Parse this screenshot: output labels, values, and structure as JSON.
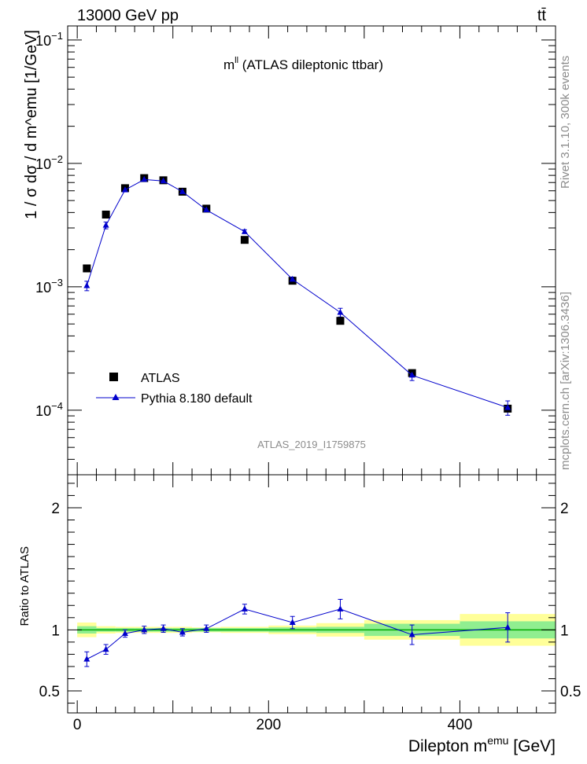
{
  "header": {
    "left": "13000 GeV pp",
    "right": "tt̄"
  },
  "annotations": {
    "plot_title_main": "m",
    "plot_title_sup": "ll",
    "plot_title_rest": " (ATLAS dileptonic ttbar)",
    "analysis_id": "ATLAS_2019_I1759875",
    "side_rivet": "Rivet 3.1.10,  300k events",
    "side_mcplots": "mcplots.cern.ch [arXiv:1306.3436]"
  },
  "colors": {
    "mc_line": "#0000cc",
    "data_marker": "#000000",
    "band_stat": "#90ee90",
    "band_total": "#ffff99",
    "ratio_ref": "#00aa00"
  },
  "chart_data": [
    {
      "type": "scatter",
      "panel": "main",
      "ylabel": "1 / σ  dσ / d m^emu [1/GeV]",
      "yscale": "log",
      "ylim": [
        3e-05,
        0.13
      ],
      "xlim": [
        -10,
        500
      ],
      "y_ticks": [
        {
          "value": 0.0001,
          "base": "10",
          "exp": "−4"
        },
        {
          "value": 0.001,
          "base": "10",
          "exp": "−3"
        },
        {
          "value": 0.01,
          "base": "10",
          "exp": "−2"
        },
        {
          "value": 0.1,
          "base": "10",
          "exp": "−1"
        }
      ],
      "series": [
        {
          "name": "ATLAS",
          "marker": "square",
          "bins": [
            [
              0,
              20
            ],
            [
              20,
              40
            ],
            [
              40,
              60
            ],
            [
              60,
              80
            ],
            [
              80,
              100
            ],
            [
              100,
              120
            ],
            [
              120,
              150
            ],
            [
              150,
              200
            ],
            [
              200,
              250
            ],
            [
              250,
              300
            ],
            [
              300,
              400
            ],
            [
              400,
              500
            ]
          ],
          "x": [
            10,
            30,
            50,
            70,
            90,
            110,
            135,
            175,
            225,
            275,
            350,
            450
          ],
          "y": [
            0.00141,
            0.00385,
            0.0063,
            0.0076,
            0.0073,
            0.0059,
            0.0043,
            0.0024,
            0.00112,
            0.00053,
            0.0002,
            0.000103
          ]
        },
        {
          "name": "Pythia 8.180 default",
          "marker": "triangle",
          "x": [
            10,
            30,
            50,
            70,
            90,
            110,
            135,
            175,
            225,
            275,
            350,
            450
          ],
          "y": [
            0.00102,
            0.00315,
            0.0061,
            0.0074,
            0.0072,
            0.0059,
            0.0042,
            0.0028,
            0.00115,
            0.00062,
            0.000192,
            0.000105
          ],
          "err": [
            9e-05,
            0.0002,
            0.0002,
            0.0002,
            0.0002,
            0.0002,
            0.0001,
            0.0001,
            5e-05,
            5e-05,
            1.8e-05,
            1.4e-05
          ]
        }
      ]
    },
    {
      "type": "line",
      "panel": "ratio",
      "ylabel": "Ratio to ATLAS",
      "xlabel_main": "Dilepton m",
      "xlabel_sup": "emu",
      "xlabel_unit": " [GeV]",
      "ylim": [
        0.32,
        2.27
      ],
      "xlim": [
        -10,
        500
      ],
      "y_ticks": [
        0.5,
        1,
        2
      ],
      "y_tick_labels": [
        "0.5",
        "1",
        "2"
      ],
      "x_ticks": [
        0,
        200,
        400
      ],
      "x_tick_labels": [
        "0",
        "200",
        "400"
      ],
      "bands": [
        {
          "x0": 0,
          "x1": 20,
          "stat": 0.03,
          "total": 0.06
        },
        {
          "x0": 20,
          "x1": 40,
          "stat": 0.015,
          "total": 0.03
        },
        {
          "x0": 40,
          "x1": 60,
          "stat": 0.015,
          "total": 0.025
        },
        {
          "x0": 60,
          "x1": 80,
          "stat": 0.015,
          "total": 0.025
        },
        {
          "x0": 80,
          "x1": 100,
          "stat": 0.015,
          "total": 0.025
        },
        {
          "x0": 100,
          "x1": 120,
          "stat": 0.015,
          "total": 0.025
        },
        {
          "x0": 120,
          "x1": 150,
          "stat": 0.015,
          "total": 0.02
        },
        {
          "x0": 150,
          "x1": 200,
          "stat": 0.015,
          "total": 0.025
        },
        {
          "x0": 200,
          "x1": 250,
          "stat": 0.02,
          "total": 0.035
        },
        {
          "x0": 250,
          "x1": 300,
          "stat": 0.025,
          "total": 0.055
        },
        {
          "x0": 300,
          "x1": 400,
          "stat": 0.05,
          "total": 0.08
        },
        {
          "x0": 400,
          "x1": 500,
          "stat": 0.07,
          "total": 0.13
        }
      ],
      "series": [
        {
          "name": "Pythia 8.180 default",
          "x": [
            10,
            30,
            50,
            70,
            90,
            110,
            135,
            175,
            225,
            275,
            350,
            450
          ],
          "y": [
            0.76,
            0.84,
            0.97,
            1.0,
            1.01,
            0.98,
            1.01,
            1.17,
            1.06,
            1.17,
            0.96,
            1.02
          ],
          "err": [
            0.06,
            0.04,
            0.03,
            0.03,
            0.03,
            0.03,
            0.03,
            0.04,
            0.05,
            0.08,
            0.08,
            0.12
          ]
        }
      ]
    }
  ]
}
